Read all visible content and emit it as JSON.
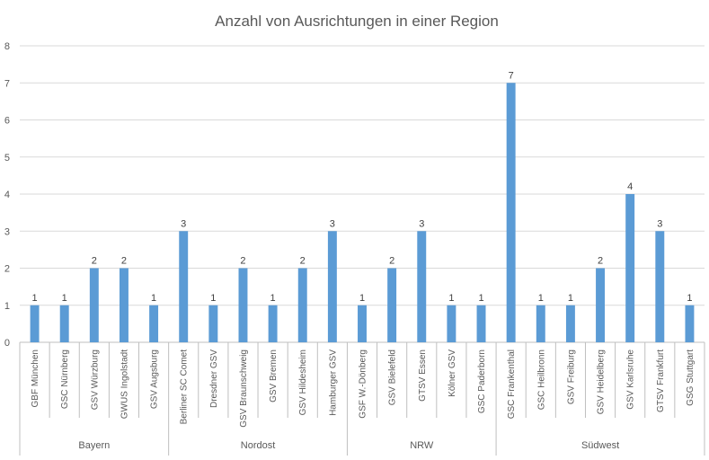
{
  "chart_data": {
    "type": "bar",
    "title": "Anzahl von Ausrichtungen in einer Region",
    "xlabel": "",
    "ylabel": "",
    "ylim": [
      0,
      8
    ],
    "yticks": [
      0,
      1,
      2,
      3,
      4,
      5,
      6,
      7,
      8
    ],
    "grid": true,
    "legend": "none",
    "bar_color": "#5b9bd5",
    "groups": [
      {
        "name": "Bayern",
        "categories": [
          "GBF München",
          "GSC Nürnberg",
          "GSV Würzburg",
          "GWUS Ingolstadt",
          "GSV Augsburg"
        ],
        "values": [
          1,
          1,
          2,
          2,
          1
        ]
      },
      {
        "name": "Nordost",
        "categories": [
          "Berliner SC Comet",
          "Dresdner GSV",
          "GSV Braunschweig",
          "GSV Bremen",
          "GSV Hildesheim",
          "Hamburger GSV"
        ],
        "values": [
          3,
          1,
          2,
          1,
          2,
          3
        ]
      },
      {
        "name": "NRW",
        "categories": [
          "GSF W.-Dönberg",
          "GSV Bielefeld",
          "GTSV Essen",
          "Kölner GSV",
          "GSC Paderborn"
        ],
        "values": [
          1,
          2,
          3,
          1,
          1
        ]
      },
      {
        "name": "Südwest",
        "categories": [
          "GSC Frankenthal",
          "GSC Heilbronn",
          "GSV Freiburg",
          "GSV Heidelberg",
          "GSV Karlsruhe",
          "GTSV Frankfurt",
          "GSG Stuttgart"
        ],
        "values": [
          7,
          1,
          1,
          2,
          4,
          3,
          1
        ]
      }
    ]
  }
}
